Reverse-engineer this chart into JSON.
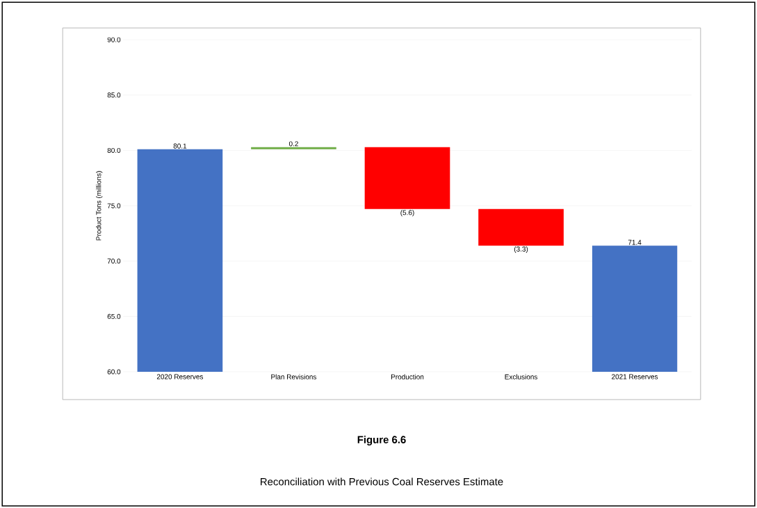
{
  "chart_data": {
    "type": "bar",
    "title": "Figure 6.6",
    "subtitle": "Reconciliation with Previous Coal Reserves Estimate",
    "ylabel": "Product Tons (millions)",
    "categories": [
      "2020 Reserves",
      "Plan Revisions",
      "Production",
      "Exclusions",
      "2021 Reserves"
    ],
    "values": [
      80.1,
      0.2,
      -5.6,
      -3.3,
      71.4
    ],
    "base": [
      null,
      80.1,
      80.3,
      74.7,
      null
    ],
    "colors": [
      "#4472c4",
      "#70ad47",
      "#ff0000",
      "#ff0000",
      "#4472c4"
    ],
    "value_labels": [
      "80.1",
      "0.2",
      "(5.6)",
      "(3.3)",
      "71.4"
    ],
    "ylim": [
      60,
      90
    ],
    "yticks": [
      {
        "value": 60,
        "label": "60.0"
      },
      {
        "value": 65,
        "label": "65.0"
      },
      {
        "value": 70,
        "label": "70.0"
      },
      {
        "value": 75,
        "label": "75.0"
      },
      {
        "value": 80,
        "label": "80.0"
      },
      {
        "value": 85,
        "label": "85.0"
      },
      {
        "value": 90,
        "label": "90.0"
      }
    ],
    "grid": "y"
  }
}
